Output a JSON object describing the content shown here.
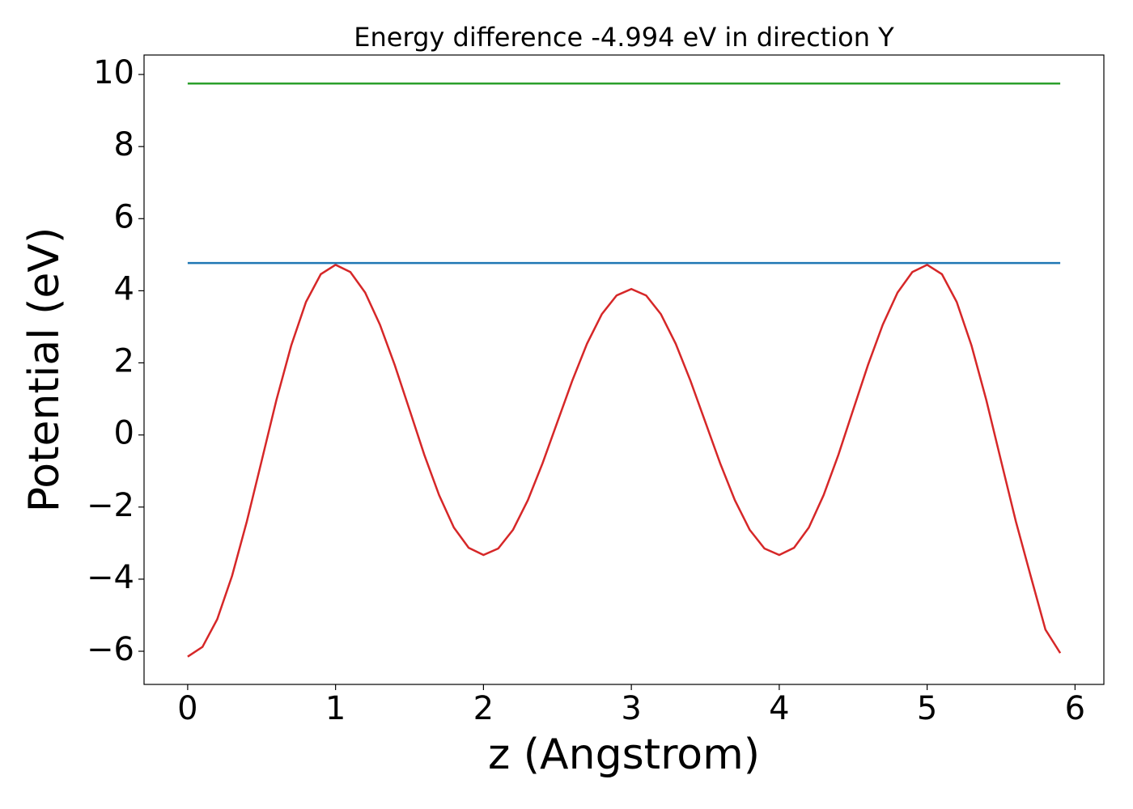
{
  "chart_data": {
    "type": "line",
    "title": "Energy difference -4.994 eV in direction Y",
    "x_label": "z (Angstrom)",
    "y_label": "Potential (eV)",
    "xlim": [
      -0.295,
      6.195
    ],
    "ylim": [
      -6.92,
      10.54
    ],
    "xticks": [
      0,
      1,
      2,
      3,
      4,
      5,
      6
    ],
    "yticks": [
      {
        "value": -6,
        "label": "−6"
      },
      {
        "value": -4,
        "label": "−4"
      },
      {
        "value": -2,
        "label": "−2"
      },
      0,
      2,
      4,
      6,
      8,
      10
    ],
    "series": [
      {
        "color": "#d62728",
        "x": [
          0,
          0.1,
          0.2,
          0.3,
          0.4,
          0.5,
          0.6,
          0.7,
          0.8,
          0.9,
          1.0,
          1.1,
          1.2,
          1.3,
          1.4,
          1.5,
          1.6,
          1.7,
          1.8,
          1.9,
          2.0,
          2.1,
          2.2,
          2.3,
          2.4,
          2.5,
          2.6,
          2.7,
          2.8,
          2.9,
          3.0,
          3.1,
          3.2,
          3.3,
          3.4,
          3.5,
          3.6,
          3.7,
          3.8,
          3.9,
          4.0,
          4.1,
          4.2,
          4.3,
          4.4,
          4.5,
          4.6,
          4.7,
          4.8,
          4.9,
          5.0,
          5.1,
          5.2,
          5.3,
          5.4,
          5.5,
          5.6,
          5.7,
          5.8,
          5.9
        ],
        "values": [
          -6.15,
          -5.88,
          -5.11,
          -3.91,
          -2.4,
          -0.72,
          0.97,
          2.48,
          3.69,
          4.46,
          4.72,
          4.52,
          3.95,
          3.06,
          1.94,
          0.7,
          -0.55,
          -1.67,
          -2.57,
          -3.13,
          -3.33,
          -3.15,
          -2.63,
          -1.81,
          -0.78,
          0.36,
          1.5,
          2.53,
          3.35,
          3.87,
          4.05,
          3.87,
          3.35,
          2.53,
          1.5,
          0.36,
          -0.78,
          -1.81,
          -2.63,
          -3.15,
          -3.33,
          -3.13,
          -2.57,
          -1.67,
          -0.55,
          0.7,
          1.94,
          3.06,
          3.95,
          4.52,
          4.72,
          4.46,
          3.69,
          2.48,
          0.97,
          -0.72,
          -2.4,
          -3.91,
          -5.4,
          -6.05
        ]
      },
      {
        "color": "#1f77b4",
        "x": [
          0,
          5.9
        ],
        "values": [
          4.77,
          4.77
        ]
      },
      {
        "color": "#2ca02c",
        "x": [
          0,
          5.9
        ],
        "values": [
          9.75,
          9.75
        ]
      }
    ]
  }
}
